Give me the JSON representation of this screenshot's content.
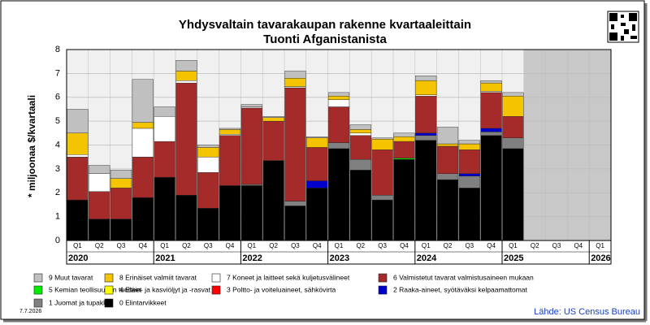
{
  "chart_data": {
    "type": "stacked_bar",
    "title": "Yhdysvaltain tavarakaupan rakenne kvartaaleittain",
    "subtitle": "Tuonti Afganistanista",
    "y_label": "* miljoonaa $/kvartaali",
    "categories": [
      "Q1",
      "Q2",
      "Q3",
      "Q4",
      "Q1",
      "Q2",
      "Q3",
      "Q4",
      "Q1",
      "Q2",
      "Q3",
      "Q4",
      "Q1",
      "Q2",
      "Q3",
      "Q4",
      "Q1",
      "Q2",
      "Q3",
      "Q4",
      "Q1",
      "Q2",
      "Q3",
      "Q4",
      "Q1"
    ],
    "years": [
      "2020",
      "2021",
      "2022",
      "2023",
      "2024",
      "2025",
      "2026"
    ],
    "ylim": [
      0,
      8
    ],
    "yticks": [
      0,
      1,
      2,
      3,
      4,
      5,
      6,
      7,
      8
    ],
    "grid": true,
    "series": [
      {
        "name": "9 Muut tavarat",
        "color": "#c0c0c0",
        "values": [
          1.0,
          0.35,
          0.35,
          1.8,
          0.4,
          0.45,
          0.1,
          0.05,
          0.1,
          0.05,
          0.3,
          0.05,
          0.15,
          0.2,
          0.05,
          0.15,
          0.2,
          0.7,
          0.15,
          0.1,
          0.15,
          null,
          null,
          null,
          null
        ]
      },
      {
        "name": "8 Erinäiset valmiit tavarat",
        "color": "#f5c400",
        "values": [
          0.9,
          0,
          0.4,
          0.25,
          0,
          0.4,
          0.4,
          0.2,
          0,
          0.15,
          0.35,
          0.4,
          0.15,
          0.15,
          0.45,
          0.2,
          0.6,
          0.1,
          0.25,
          0.35,
          0.85,
          null,
          null,
          null,
          null
        ]
      },
      {
        "name": "7 Koneet ja laitteet sekä kuljetusvälineet",
        "color": "#ffffff",
        "values": [
          0.1,
          0.75,
          0,
          1.2,
          1.05,
          0.1,
          0.65,
          0.05,
          0.05,
          0,
          0.05,
          0,
          0.3,
          0.1,
          0,
          0,
          0.05,
          0,
          0,
          0.05,
          0,
          null,
          null,
          null,
          null
        ]
      },
      {
        "name": "6 Valmistetut tavarat valmistusaineen mukaan",
        "color": "#a52a2a",
        "values": [
          1.8,
          1.15,
          1.3,
          1.7,
          1.5,
          4.7,
          1.5,
          2.1,
          3.2,
          1.65,
          4.75,
          1.4,
          1.5,
          1.0,
          1.9,
          0.7,
          1.55,
          1.15,
          1.0,
          1.5,
          0.9,
          null,
          null,
          null,
          null
        ]
      },
      {
        "name": "5 Kemian teollisuuden tuotteet",
        "color": "#00ee00",
        "values": [
          0,
          0,
          0,
          0,
          0,
          0,
          0,
          0,
          0,
          0,
          0,
          0,
          0,
          0,
          0,
          0.05,
          0,
          0,
          0,
          0,
          0,
          null,
          null,
          null,
          null
        ]
      },
      {
        "name": "4 Eläin- ja kasviöljyt ja -rasvat",
        "color": "#ffff00",
        "values": [
          0,
          0,
          0,
          0,
          0,
          0,
          0,
          0,
          0,
          0,
          0,
          0,
          0,
          0,
          0,
          0,
          0,
          0,
          0,
          0,
          0,
          null,
          null,
          null,
          null
        ]
      },
      {
        "name": "3 Poltto- ja voiteluaineet, sähkövirta",
        "color": "#ff0000",
        "values": [
          0,
          0,
          0,
          0,
          0,
          0,
          0,
          0,
          0,
          0,
          0,
          0,
          0,
          0,
          0,
          0,
          0,
          0,
          0,
          0,
          0,
          null,
          null,
          null,
          null
        ]
      },
      {
        "name": "2 Raaka-aineet, syötäväksi kelpaamattomat",
        "color": "#0000cc",
        "values": [
          0,
          0,
          0,
          0,
          0,
          0,
          0,
          0,
          0,
          0,
          0,
          0.3,
          0,
          0,
          0,
          0,
          0.1,
          0,
          0.1,
          0.15,
          0,
          null,
          null,
          null,
          null
        ]
      },
      {
        "name": "1 Juomat ja tupakka",
        "color": "#808080",
        "values": [
          0,
          0,
          0,
          0,
          0,
          0,
          0,
          0,
          0.05,
          0,
          0.2,
          0,
          0.25,
          0.45,
          0.2,
          0,
          0.2,
          0.25,
          0.5,
          0.15,
          0.45,
          null,
          null,
          null,
          null
        ]
      },
      {
        "name": "0 Elintarvikkeet",
        "color": "#000000",
        "values": [
          1.7,
          0.9,
          0.9,
          1.8,
          2.65,
          1.9,
          1.35,
          2.3,
          2.3,
          3.35,
          1.45,
          2.2,
          3.85,
          2.95,
          1.7,
          3.4,
          4.2,
          2.55,
          2.2,
          4.4,
          3.85,
          null,
          null,
          null,
          null
        ]
      }
    ],
    "date": "7.7.2026",
    "source": "Lähde: US Census Bureau"
  }
}
